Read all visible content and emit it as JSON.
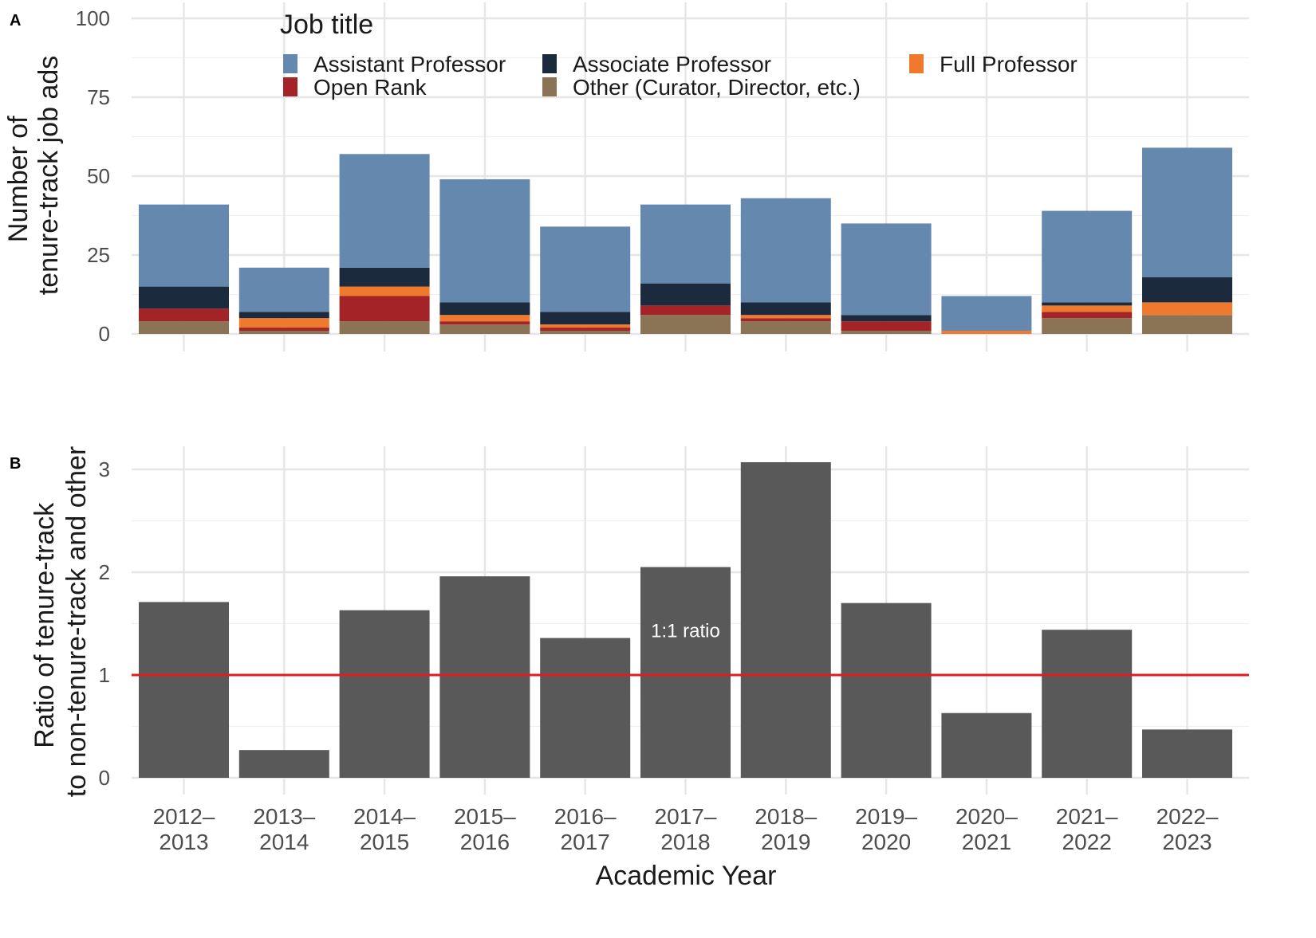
{
  "chart_data": [
    {
      "panel": "A",
      "type": "bar",
      "stacked": true,
      "ylabel": [
        "Number of",
        "tenure-track job ads"
      ],
      "ylim": [
        0,
        100
      ],
      "yticks": [
        "0",
        "25",
        "50",
        "75",
        "100"
      ],
      "grid": true,
      "legend": {
        "title": "Job title",
        "placement": "top",
        "items": [
          {
            "name": "Assistant Professor",
            "color": "#6588ae"
          },
          {
            "name": "Associate Professor",
            "color": "#1b2a3c"
          },
          {
            "name": "Full Professor",
            "color": "#ef7a2e"
          },
          {
            "name": "Open Rank",
            "color": "#a32326"
          },
          {
            "name": "Other (Curator, Director, etc.)",
            "color": "#8b7356"
          }
        ]
      },
      "categories": [
        "2012–2013",
        "2013–2014",
        "2014–2015",
        "2015–2016",
        "2016–2017",
        "2017–2018",
        "2018–2019",
        "2019–2020",
        "2020–2021",
        "2021–2022",
        "2022–2023"
      ],
      "series": [
        {
          "name": "Other (Curator, Director, etc.)",
          "values": [
            4,
            1,
            4,
            3,
            1,
            6,
            4,
            1,
            0,
            5,
            6
          ]
        },
        {
          "name": "Open Rank",
          "values": [
            4,
            1,
            8,
            1,
            1,
            3,
            1,
            3,
            0,
            2,
            0
          ]
        },
        {
          "name": "Full Professor",
          "values": [
            0,
            3,
            3,
            2,
            1,
            0,
            1,
            0,
            1,
            2,
            4
          ]
        },
        {
          "name": "Associate Professor",
          "values": [
            7,
            2,
            6,
            4,
            4,
            7,
            4,
            2,
            0,
            1,
            8
          ]
        },
        {
          "name": "Assistant Professor",
          "values": [
            26,
            14,
            36,
            39,
            27,
            25,
            33,
            29,
            11,
            29,
            41
          ]
        }
      ]
    },
    {
      "panel": "B",
      "type": "bar",
      "ylabel": [
        "Ratio of tenure-track",
        "to non-tenure-track and other"
      ],
      "xlabel": "Academic Year",
      "ylim": [
        0,
        3.15
      ],
      "yticks": [
        "0",
        "1",
        "2",
        "3"
      ],
      "grid": true,
      "bar_color": "#595959",
      "categories": [
        "2012–2013",
        "2013–2014",
        "2014–2015",
        "2015–2016",
        "2016–2017",
        "2017–2018",
        "2018–2019",
        "2019–2020",
        "2020–2021",
        "2021–2022",
        "2022–2023"
      ],
      "xticks": [
        [
          "2012–",
          "2013"
        ],
        [
          "2013–",
          "2014"
        ],
        [
          "2014–",
          "2015"
        ],
        [
          "2015–",
          "2016"
        ],
        [
          "2016–",
          "2017"
        ],
        [
          "2017–",
          "2018"
        ],
        [
          "2018–",
          "2019"
        ],
        [
          "2019–",
          "2020"
        ],
        [
          "2020–",
          "2021"
        ],
        [
          "2021–",
          "2022"
        ],
        [
          "2022–",
          "2023"
        ]
      ],
      "values": [
        1.71,
        0.27,
        1.63,
        1.96,
        1.36,
        2.05,
        3.07,
        1.7,
        0.63,
        1.44,
        0.47
      ],
      "reference_line": {
        "y": 1,
        "color": "#e41a1c",
        "label": "1:1 ratio"
      }
    }
  ]
}
